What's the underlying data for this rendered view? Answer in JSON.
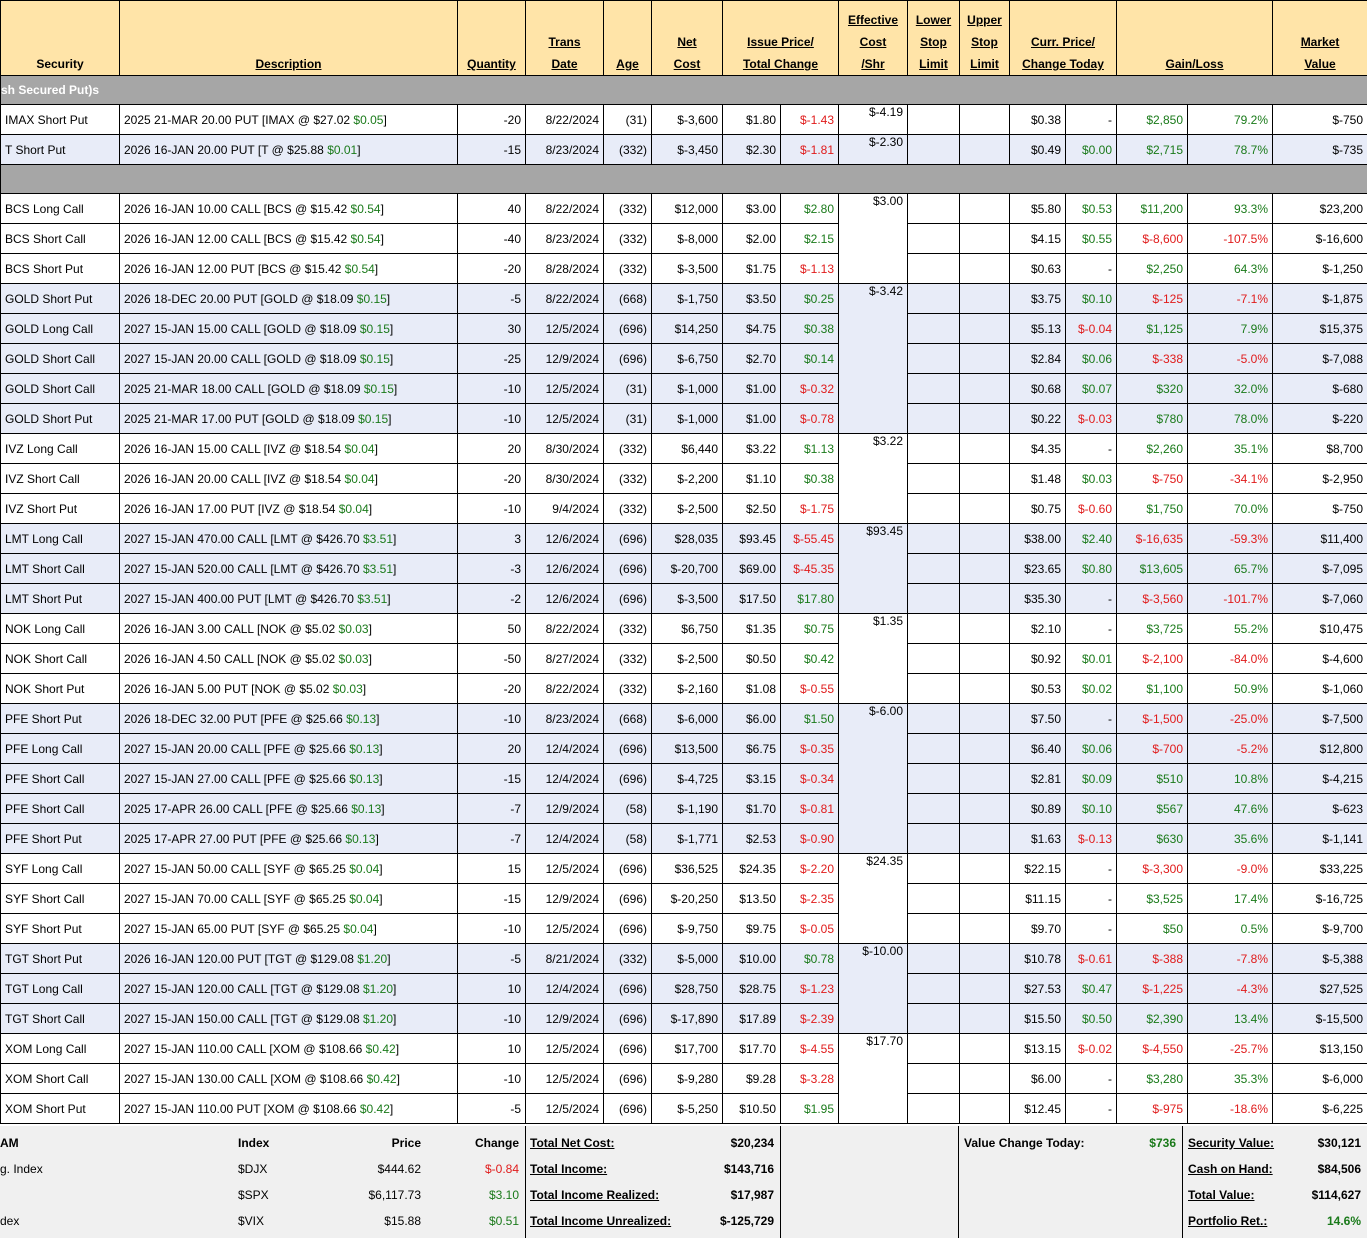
{
  "headers": {
    "security": "Security",
    "description": "Description",
    "quantity": "Quantity",
    "trans_date_1": "Trans",
    "trans_date_2": "Date",
    "age": "Age",
    "net_cost_1": "Net",
    "net_cost_2": "Cost",
    "issue_price_1": "Issue Price/",
    "issue_price_2": "Total Change",
    "eff_cost_1": "Effective",
    "eff_cost_2": "Cost",
    "eff_cost_3": "/Shr",
    "lower_stop_1": "Lower",
    "lower_stop_2": "Stop",
    "lower_stop_3": "Limit",
    "upper_stop_1": "Upper",
    "upper_stop_2": "Stop",
    "upper_stop_3": "Limit",
    "curr_price_1": "Curr. Price/",
    "curr_price_2": "Change Today",
    "gain_loss": "Gain/Loss",
    "market_value_1": "Market",
    "market_value_2": "Value"
  },
  "section1_title": "sh Secured Put)s",
  "rows": [
    {
      "sec": "IMAX Short Put",
      "desc": "2025 21-MAR 20.00 PUT [IMAX @ $27.02 ",
      "chg": "$0.05",
      "chgc": "g",
      "qty": "-20",
      "date": "8/22/2024",
      "age": "(31)",
      "cost": "$-3,600",
      "issue": "$1.80",
      "tchg": "$-1.43",
      "tchgc": "rd",
      "eff": "$-4.19",
      "curr": "$0.38",
      "today": "-",
      "todayc": "",
      "gl": "$2,850",
      "glc": "g",
      "pct": "79.2%",
      "pctc": "g",
      "mv": "$-750",
      "alt": false,
      "grp": "single"
    },
    {
      "sec": "T Short Put",
      "desc": "2026 16-JAN 20.00 PUT [T @ $25.88 ",
      "chg": "$0.01",
      "chgc": "g",
      "qty": "-15",
      "date": "8/23/2024",
      "age": "(332)",
      "cost": "$-3,450",
      "issue": "$2.30",
      "tchg": "$-1.81",
      "tchgc": "rd",
      "eff": "$-2.30",
      "curr": "$0.49",
      "today": "$0.00",
      "todayc": "g",
      "gl": "$2,715",
      "glc": "g",
      "pct": "78.7%",
      "pctc": "g",
      "mv": "$-735",
      "alt": true,
      "grp": "single"
    }
  ],
  "rows2": [
    {
      "sec": "BCS Long Call",
      "desc": "2026 16-JAN 10.00 CALL [BCS @ $15.42 ",
      "chg": "$0.54",
      "chgc": "g",
      "qty": "40",
      "date": "8/22/2024",
      "age": "(332)",
      "cost": "$12,000",
      "issue": "$3.00",
      "tchg": "$2.80",
      "tchgc": "g",
      "eff": "$3.00",
      "curr": "$5.80",
      "today": "$0.53",
      "todayc": "g",
      "gl": "$11,200",
      "glc": "g",
      "pct": "93.3%",
      "pctc": "g",
      "mv": "$23,200",
      "alt": false,
      "grp": "open"
    },
    {
      "sec": "BCS Short Call",
      "desc": "2026 16-JAN 12.00 CALL [BCS @ $15.42 ",
      "chg": "$0.54",
      "chgc": "g",
      "qty": "-40",
      "date": "8/23/2024",
      "age": "(332)",
      "cost": "$-8,000",
      "issue": "$2.00",
      "tchg": "$2.15",
      "tchgc": "g",
      "eff": "",
      "curr": "$4.15",
      "today": "$0.55",
      "todayc": "g",
      "gl": "$-8,600",
      "glc": "rd",
      "pct": "-107.5%",
      "pctc": "rd",
      "mv": "$-16,600",
      "alt": false,
      "grp": "mid"
    },
    {
      "sec": "BCS Short Put",
      "desc": "2026 16-JAN 12.00 PUT [BCS @ $15.42 ",
      "chg": "$0.54",
      "chgc": "g",
      "qty": "-20",
      "date": "8/28/2024",
      "age": "(332)",
      "cost": "$-3,500",
      "issue": "$1.75",
      "tchg": "$-1.13",
      "tchgc": "rd",
      "eff": "",
      "curr": "$0.63",
      "today": "-",
      "todayc": "",
      "gl": "$2,250",
      "glc": "g",
      "pct": "64.3%",
      "pctc": "g",
      "mv": "$-1,250",
      "alt": false,
      "grp": "end"
    },
    {
      "sec": "GOLD Short Put",
      "desc": "2026 18-DEC 20.00 PUT [GOLD @ $18.09 ",
      "chg": "$0.15",
      "chgc": "g",
      "qty": "-5",
      "date": "8/22/2024",
      "age": "(668)",
      "cost": "$-1,750",
      "issue": "$3.50",
      "tchg": "$0.25",
      "tchgc": "g",
      "eff": "$-3.42",
      "curr": "$3.75",
      "today": "$0.10",
      "todayc": "g",
      "gl": "$-125",
      "glc": "rd",
      "pct": "-7.1%",
      "pctc": "rd",
      "mv": "$-1,875",
      "alt": true,
      "grp": "open"
    },
    {
      "sec": "GOLD Long Call",
      "desc": "2027 15-JAN 15.00 CALL [GOLD @ $18.09 ",
      "chg": "$0.15",
      "chgc": "g",
      "qty": "30",
      "date": "12/5/2024",
      "age": "(696)",
      "cost": "$14,250",
      "issue": "$4.75",
      "tchg": "$0.38",
      "tchgc": "g",
      "eff": "",
      "curr": "$5.13",
      "today": "$-0.04",
      "todayc": "rd",
      "gl": "$1,125",
      "glc": "g",
      "pct": "7.9%",
      "pctc": "g",
      "mv": "$15,375",
      "alt": true,
      "grp": "mid"
    },
    {
      "sec": "GOLD Short Call",
      "desc": "2027 15-JAN 20.00 CALL [GOLD @ $18.09 ",
      "chg": "$0.15",
      "chgc": "g",
      "qty": "-25",
      "date": "12/9/2024",
      "age": "(696)",
      "cost": "$-6,750",
      "issue": "$2.70",
      "tchg": "$0.14",
      "tchgc": "g",
      "eff": "",
      "curr": "$2.84",
      "today": "$0.06",
      "todayc": "g",
      "gl": "$-338",
      "glc": "rd",
      "pct": "-5.0%",
      "pctc": "rd",
      "mv": "$-7,088",
      "alt": true,
      "grp": "mid"
    },
    {
      "sec": "GOLD Short Call",
      "desc": "2025 21-MAR 18.00 CALL [GOLD @ $18.09 ",
      "chg": "$0.15",
      "chgc": "g",
      "qty": "-10",
      "date": "12/5/2024",
      "age": "(31)",
      "cost": "$-1,000",
      "issue": "$1.00",
      "tchg": "$-0.32",
      "tchgc": "rd",
      "eff": "",
      "curr": "$0.68",
      "today": "$0.07",
      "todayc": "g",
      "gl": "$320",
      "glc": "g",
      "pct": "32.0%",
      "pctc": "g",
      "mv": "$-680",
      "alt": true,
      "grp": "mid"
    },
    {
      "sec": "GOLD Short Put",
      "desc": "2025 21-MAR 17.00 PUT [GOLD @ $18.09 ",
      "chg": "$0.15",
      "chgc": "g",
      "qty": "-10",
      "date": "12/5/2024",
      "age": "(31)",
      "cost": "$-1,000",
      "issue": "$1.00",
      "tchg": "$-0.78",
      "tchgc": "rd",
      "eff": "",
      "curr": "$0.22",
      "today": "$-0.03",
      "todayc": "rd",
      "gl": "$780",
      "glc": "g",
      "pct": "78.0%",
      "pctc": "g",
      "mv": "$-220",
      "alt": true,
      "grp": "end"
    },
    {
      "sec": "IVZ Long Call",
      "desc": "2026 16-JAN 15.00 CALL [IVZ @ $18.54 ",
      "chg": "$0.04",
      "chgc": "g",
      "qty": "20",
      "date": "8/30/2024",
      "age": "(332)",
      "cost": "$6,440",
      "issue": "$3.22",
      "tchg": "$1.13",
      "tchgc": "g",
      "eff": "$3.22",
      "curr": "$4.35",
      "today": "-",
      "todayc": "",
      "gl": "$2,260",
      "glc": "g",
      "pct": "35.1%",
      "pctc": "g",
      "mv": "$8,700",
      "alt": false,
      "grp": "open"
    },
    {
      "sec": "IVZ Short Call",
      "desc": "2026 16-JAN 20.00 CALL [IVZ @ $18.54 ",
      "chg": "$0.04",
      "chgc": "g",
      "qty": "-20",
      "date": "8/30/2024",
      "age": "(332)",
      "cost": "$-2,200",
      "issue": "$1.10",
      "tchg": "$0.38",
      "tchgc": "g",
      "eff": "",
      "curr": "$1.48",
      "today": "$0.03",
      "todayc": "g",
      "gl": "$-750",
      "glc": "rd",
      "pct": "-34.1%",
      "pctc": "rd",
      "mv": "$-2,950",
      "alt": false,
      "grp": "mid"
    },
    {
      "sec": "IVZ Short Put",
      "desc": "2026 16-JAN 17.00 PUT [IVZ @ $18.54 ",
      "chg": "$0.04",
      "chgc": "g",
      "qty": "-10",
      "date": "9/4/2024",
      "age": "(332)",
      "cost": "$-2,500",
      "issue": "$2.50",
      "tchg": "$-1.75",
      "tchgc": "rd",
      "eff": "",
      "curr": "$0.75",
      "today": "$-0.60",
      "todayc": "rd",
      "gl": "$1,750",
      "glc": "g",
      "pct": "70.0%",
      "pctc": "g",
      "mv": "$-750",
      "alt": false,
      "grp": "end"
    },
    {
      "sec": "LMT Long Call",
      "desc": "2027 15-JAN 470.00 CALL [LMT @ $426.70 ",
      "chg": "$3.51",
      "chgc": "g",
      "qty": "3",
      "date": "12/6/2024",
      "age": "(696)",
      "cost": "$28,035",
      "issue": "$93.45",
      "tchg": "$-55.45",
      "tchgc": "rd",
      "eff": "$93.45",
      "curr": "$38.00",
      "today": "$2.40",
      "todayc": "g",
      "gl": "$-16,635",
      "glc": "rd",
      "pct": "-59.3%",
      "pctc": "rd",
      "mv": "$11,400",
      "alt": true,
      "grp": "open"
    },
    {
      "sec": "LMT Short Call",
      "desc": "2027 15-JAN 520.00 CALL [LMT @ $426.70 ",
      "chg": "$3.51",
      "chgc": "g",
      "qty": "-3",
      "date": "12/6/2024",
      "age": "(696)",
      "cost": "$-20,700",
      "issue": "$69.00",
      "tchg": "$-45.35",
      "tchgc": "rd",
      "eff": "",
      "curr": "$23.65",
      "today": "$0.80",
      "todayc": "g",
      "gl": "$13,605",
      "glc": "g",
      "pct": "65.7%",
      "pctc": "g",
      "mv": "$-7,095",
      "alt": true,
      "grp": "mid"
    },
    {
      "sec": "LMT Short Put",
      "desc": "2027 15-JAN 400.00 PUT [LMT @ $426.70 ",
      "chg": "$3.51",
      "chgc": "g",
      "qty": "-2",
      "date": "12/6/2024",
      "age": "(696)",
      "cost": "$-3,500",
      "issue": "$17.50",
      "tchg": "$17.80",
      "tchgc": "g",
      "eff": "",
      "curr": "$35.30",
      "today": "-",
      "todayc": "",
      "gl": "$-3,560",
      "glc": "rd",
      "pct": "-101.7%",
      "pctc": "rd",
      "mv": "$-7,060",
      "alt": true,
      "grp": "end"
    },
    {
      "sec": "NOK Long Call",
      "desc": "2026 16-JAN 3.00 CALL [NOK @ $5.02 ",
      "chg": "$0.03",
      "chgc": "g",
      "qty": "50",
      "date": "8/22/2024",
      "age": "(332)",
      "cost": "$6,750",
      "issue": "$1.35",
      "tchg": "$0.75",
      "tchgc": "g",
      "eff": "$1.35",
      "curr": "$2.10",
      "today": "-",
      "todayc": "",
      "gl": "$3,725",
      "glc": "g",
      "pct": "55.2%",
      "pctc": "g",
      "mv": "$10,475",
      "alt": false,
      "grp": "open"
    },
    {
      "sec": "NOK Short Call",
      "desc": "2026 16-JAN 4.50 CALL [NOK @ $5.02 ",
      "chg": "$0.03",
      "chgc": "g",
      "qty": "-50",
      "date": "8/27/2024",
      "age": "(332)",
      "cost": "$-2,500",
      "issue": "$0.50",
      "tchg": "$0.42",
      "tchgc": "g",
      "eff": "",
      "curr": "$0.92",
      "today": "$0.01",
      "todayc": "g",
      "gl": "$-2,100",
      "glc": "rd",
      "pct": "-84.0%",
      "pctc": "rd",
      "mv": "$-4,600",
      "alt": false,
      "grp": "mid"
    },
    {
      "sec": "NOK Short Put",
      "desc": "2026 16-JAN 5.00 PUT [NOK @ $5.02 ",
      "chg": "$0.03",
      "chgc": "g",
      "qty": "-20",
      "date": "8/22/2024",
      "age": "(332)",
      "cost": "$-2,160",
      "issue": "$1.08",
      "tchg": "$-0.55",
      "tchgc": "rd",
      "eff": "",
      "curr": "$0.53",
      "today": "$0.02",
      "todayc": "g",
      "gl": "$1,100",
      "glc": "g",
      "pct": "50.9%",
      "pctc": "g",
      "mv": "$-1,060",
      "alt": false,
      "grp": "end"
    },
    {
      "sec": "PFE Short Put",
      "desc": "2026 18-DEC 32.00 PUT [PFE @ $25.66 ",
      "chg": "$0.13",
      "chgc": "g",
      "qty": "-10",
      "date": "8/23/2024",
      "age": "(668)",
      "cost": "$-6,000",
      "issue": "$6.00",
      "tchg": "$1.50",
      "tchgc": "g",
      "eff": "$-6.00",
      "curr": "$7.50",
      "today": "-",
      "todayc": "",
      "gl": "$-1,500",
      "glc": "rd",
      "pct": "-25.0%",
      "pctc": "rd",
      "mv": "$-7,500",
      "alt": true,
      "grp": "open"
    },
    {
      "sec": "PFE Long Call",
      "desc": "2027 15-JAN 20.00 CALL [PFE @ $25.66 ",
      "chg": "$0.13",
      "chgc": "g",
      "qty": "20",
      "date": "12/4/2024",
      "age": "(696)",
      "cost": "$13,500",
      "issue": "$6.75",
      "tchg": "$-0.35",
      "tchgc": "rd",
      "eff": "",
      "curr": "$6.40",
      "today": "$0.06",
      "todayc": "g",
      "gl": "$-700",
      "glc": "rd",
      "pct": "-5.2%",
      "pctc": "rd",
      "mv": "$12,800",
      "alt": true,
      "grp": "mid"
    },
    {
      "sec": "PFE Short Call",
      "desc": "2027 15-JAN 27.00 CALL [PFE @ $25.66 ",
      "chg": "$0.13",
      "chgc": "g",
      "qty": "-15",
      "date": "12/4/2024",
      "age": "(696)",
      "cost": "$-4,725",
      "issue": "$3.15",
      "tchg": "$-0.34",
      "tchgc": "rd",
      "eff": "",
      "curr": "$2.81",
      "today": "$0.09",
      "todayc": "g",
      "gl": "$510",
      "glc": "g",
      "pct": "10.8%",
      "pctc": "g",
      "mv": "$-4,215",
      "alt": true,
      "grp": "mid"
    },
    {
      "sec": "PFE Short Call",
      "desc": "2025 17-APR 26.00 CALL [PFE @ $25.66 ",
      "chg": "$0.13",
      "chgc": "g",
      "qty": "-7",
      "date": "12/9/2024",
      "age": "(58)",
      "cost": "$-1,190",
      "issue": "$1.70",
      "tchg": "$-0.81",
      "tchgc": "rd",
      "eff": "",
      "curr": "$0.89",
      "today": "$0.10",
      "todayc": "g",
      "gl": "$567",
      "glc": "g",
      "pct": "47.6%",
      "pctc": "g",
      "mv": "$-623",
      "alt": true,
      "grp": "mid"
    },
    {
      "sec": "PFE Short Put",
      "desc": "2025 17-APR 27.00 PUT [PFE @ $25.66 ",
      "chg": "$0.13",
      "chgc": "g",
      "qty": "-7",
      "date": "12/4/2024",
      "age": "(58)",
      "cost": "$-1,771",
      "issue": "$2.53",
      "tchg": "$-0.90",
      "tchgc": "rd",
      "eff": "",
      "curr": "$1.63",
      "today": "$-0.13",
      "todayc": "rd",
      "gl": "$630",
      "glc": "g",
      "pct": "35.6%",
      "pctc": "g",
      "mv": "$-1,141",
      "alt": true,
      "grp": "end"
    },
    {
      "sec": "SYF Long Call",
      "desc": "2027 15-JAN 50.00 CALL [SYF @ $65.25 ",
      "chg": "$0.04",
      "chgc": "g",
      "qty": "15",
      "date": "12/5/2024",
      "age": "(696)",
      "cost": "$36,525",
      "issue": "$24.35",
      "tchg": "$-2.20",
      "tchgc": "rd",
      "eff": "$24.35",
      "curr": "$22.15",
      "today": "-",
      "todayc": "",
      "gl": "$-3,300",
      "glc": "rd",
      "pct": "-9.0%",
      "pctc": "rd",
      "mv": "$33,225",
      "alt": false,
      "grp": "open"
    },
    {
      "sec": "SYF Short Call",
      "desc": "2027 15-JAN 70.00 CALL [SYF @ $65.25 ",
      "chg": "$0.04",
      "chgc": "g",
      "qty": "-15",
      "date": "12/9/2024",
      "age": "(696)",
      "cost": "$-20,250",
      "issue": "$13.50",
      "tchg": "$-2.35",
      "tchgc": "rd",
      "eff": "",
      "curr": "$11.15",
      "today": "-",
      "todayc": "",
      "gl": "$3,525",
      "glc": "g",
      "pct": "17.4%",
      "pctc": "g",
      "mv": "$-16,725",
      "alt": false,
      "grp": "mid"
    },
    {
      "sec": "SYF Short Put",
      "desc": "2027 15-JAN 65.00 PUT [SYF @ $65.25 ",
      "chg": "$0.04",
      "chgc": "g",
      "qty": "-10",
      "date": "12/5/2024",
      "age": "(696)",
      "cost": "$-9,750",
      "issue": "$9.75",
      "tchg": "$-0.05",
      "tchgc": "rd",
      "eff": "",
      "curr": "$9.70",
      "today": "-",
      "todayc": "",
      "gl": "$50",
      "glc": "g",
      "pct": "0.5%",
      "pctc": "g",
      "mv": "$-9,700",
      "alt": false,
      "grp": "end"
    },
    {
      "sec": "TGT Short Put",
      "desc": "2026 16-JAN 120.00 PUT [TGT @ $129.08 ",
      "chg": "$1.20",
      "chgc": "g",
      "qty": "-5",
      "date": "8/21/2024",
      "age": "(332)",
      "cost": "$-5,000",
      "issue": "$10.00",
      "tchg": "$0.78",
      "tchgc": "g",
      "eff": "$-10.00",
      "curr": "$10.78",
      "today": "$-0.61",
      "todayc": "rd",
      "gl": "$-388",
      "glc": "rd",
      "pct": "-7.8%",
      "pctc": "rd",
      "mv": "$-5,388",
      "alt": true,
      "grp": "open"
    },
    {
      "sec": "TGT Long Call",
      "desc": "2027 15-JAN 120.00 CALL [TGT @ $129.08 ",
      "chg": "$1.20",
      "chgc": "g",
      "qty": "10",
      "date": "12/4/2024",
      "age": "(696)",
      "cost": "$28,750",
      "issue": "$28.75",
      "tchg": "$-1.23",
      "tchgc": "rd",
      "eff": "",
      "curr": "$27.53",
      "today": "$0.47",
      "todayc": "g",
      "gl": "$-1,225",
      "glc": "rd",
      "pct": "-4.3%",
      "pctc": "rd",
      "mv": "$27,525",
      "alt": true,
      "grp": "mid"
    },
    {
      "sec": "TGT Short Call",
      "desc": "2027 15-JAN 150.00 CALL [TGT @ $129.08 ",
      "chg": "$1.20",
      "chgc": "g",
      "qty": "-10",
      "date": "12/9/2024",
      "age": "(696)",
      "cost": "$-17,890",
      "issue": "$17.89",
      "tchg": "$-2.39",
      "tchgc": "rd",
      "eff": "",
      "curr": "$15.50",
      "today": "$0.50",
      "todayc": "g",
      "gl": "$2,390",
      "glc": "g",
      "pct": "13.4%",
      "pctc": "g",
      "mv": "$-15,500",
      "alt": true,
      "grp": "end"
    },
    {
      "sec": "XOM Long Call",
      "desc": "2027 15-JAN 110.00 CALL [XOM @ $108.66 ",
      "chg": "$0.42",
      "chgc": "g",
      "qty": "10",
      "date": "12/5/2024",
      "age": "(696)",
      "cost": "$17,700",
      "issue": "$17.70",
      "tchg": "$-4.55",
      "tchgc": "rd",
      "eff": "$17.70",
      "curr": "$13.15",
      "today": "$-0.02",
      "todayc": "rd",
      "gl": "$-4,550",
      "glc": "rd",
      "pct": "-25.7%",
      "pctc": "rd",
      "mv": "$13,150",
      "alt": false,
      "grp": "open"
    },
    {
      "sec": "XOM Short Call",
      "desc": "2027 15-JAN 130.00 CALL [XOM @ $108.66 ",
      "chg": "$0.42",
      "chgc": "g",
      "qty": "-10",
      "date": "12/5/2024",
      "age": "(696)",
      "cost": "$-9,280",
      "issue": "$9.28",
      "tchg": "$-3.28",
      "tchgc": "rd",
      "eff": "",
      "curr": "$6.00",
      "today": "-",
      "todayc": "",
      "gl": "$3,280",
      "glc": "g",
      "pct": "35.3%",
      "pctc": "g",
      "mv": "$-6,000",
      "alt": false,
      "grp": "mid"
    },
    {
      "sec": "XOM Short Put",
      "desc": "2027 15-JAN 110.00 PUT [XOM @ $108.66 ",
      "chg": "$0.42",
      "chgc": "g",
      "qty": "-5",
      "date": "12/5/2024",
      "age": "(696)",
      "cost": "$-5,250",
      "issue": "$10.50",
      "tchg": "$1.95",
      "tchgc": "g",
      "eff": "",
      "curr": "$12.45",
      "today": "-",
      "todayc": "",
      "gl": "$-975",
      "glc": "rd",
      "pct": "-18.6%",
      "pctc": "rd",
      "mv": "$-6,225",
      "alt": false,
      "grp": "end"
    }
  ],
  "footer": {
    "am": "AM",
    "index_header": "Index",
    "price_header": "Price",
    "change_header": "Change",
    "indices": [
      {
        "name": "g. Index",
        "sym": "$DJX",
        "price": "$444.62",
        "chg": "$-0.84",
        "chgc": "rd"
      },
      {
        "name": "",
        "sym": "$SPX",
        "price": "$6,117.73",
        "chg": "$3.10",
        "chgc": "g"
      },
      {
        "name": "dex",
        "sym": "$VIX",
        "price": "$15.88",
        "chg": "$0.51",
        "chgc": "g"
      }
    ],
    "totals": [
      {
        "label": "Total Net Cost:",
        "value": "$20,234"
      },
      {
        "label": "Total Income:",
        "value": "$143,716"
      },
      {
        "label": "Total Income Realized:",
        "value": "$17,987"
      },
      {
        "label": "Total Income Unrealized:",
        "value": "$-125,729"
      }
    ],
    "value_change_label": "Value Change Today:",
    "value_change": "$736",
    "summary": [
      {
        "label": "Security Value:",
        "value": "$30,121",
        "c": ""
      },
      {
        "label": "Cash on Hand:",
        "value": "$84,506",
        "c": ""
      },
      {
        "label": "Total Value:",
        "value": "$114,627",
        "c": ""
      },
      {
        "label": "Portfolio Ret.:",
        "value": "14.6%",
        "c": "g"
      }
    ]
  },
  "colors": {
    "header_bg": "#ffe4a8",
    "section_bg": "#a6a6a6",
    "alt_row_bg": "#e8ecf8",
    "gain": "#1a7a1a",
    "loss": "#e01b1b"
  }
}
